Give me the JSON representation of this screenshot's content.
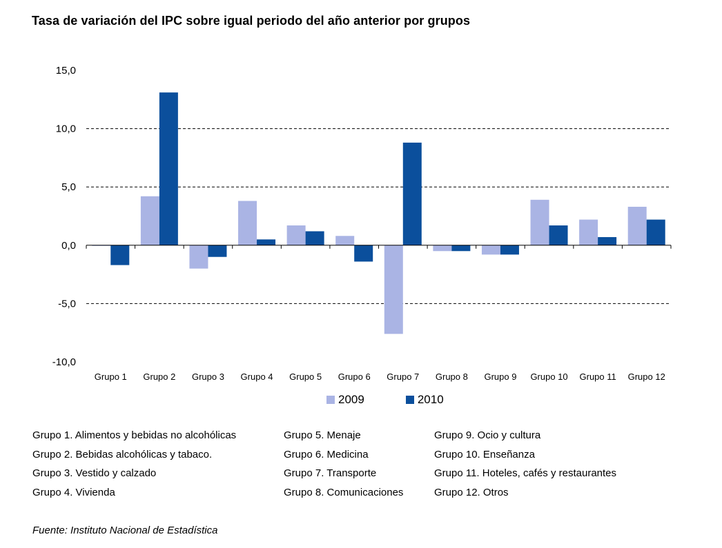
{
  "title": "Tasa de variación del IPC sobre igual periodo del año anterior por grupos",
  "chart_data": {
    "type": "bar",
    "categories": [
      "Grupo 1",
      "Grupo 2",
      "Grupo 3",
      "Grupo 4",
      "Grupo 5",
      "Grupo 6",
      "Grupo 7",
      "Grupo 8",
      "Grupo 9",
      "Grupo 10",
      "Grupo 11",
      "Grupo 12"
    ],
    "series": [
      {
        "name": "2009",
        "color": "#aab4e4",
        "values": [
          0.0,
          4.2,
          -2.0,
          3.8,
          1.7,
          0.8,
          -7.6,
          -0.5,
          -0.8,
          3.9,
          2.2,
          3.3
        ]
      },
      {
        "name": "2010",
        "color": "#0b4f9c",
        "values": [
          -1.7,
          13.1,
          -1.0,
          0.5,
          1.2,
          -1.4,
          8.8,
          -0.5,
          -0.8,
          1.7,
          0.7,
          2.2
        ]
      }
    ],
    "yticks": [
      "15,0",
      "10,0",
      "5,0",
      "0,0",
      "-5,0",
      "-10,0"
    ],
    "ytick_values": [
      15,
      10,
      5,
      0,
      -5,
      -10
    ],
    "ylim": [
      -10,
      15
    ],
    "grid": "dashed horizontal",
    "legend_position": "bottom"
  },
  "groups": [
    [
      "Grupo 1. Alimentos y bebidas no alcohólicas",
      "Grupo 2. Bebidas alcohólicas y  tabaco.",
      "Grupo 3. Vestido y calzado",
      "Grupo 4. Vivienda"
    ],
    [
      "Grupo 5. Menaje",
      "Grupo 6. Medicina",
      "Grupo 7. Transporte",
      "Grupo 8. Comunicaciones"
    ],
    [
      "Grupo 9. Ocio y cultura",
      "Grupo 10. Enseñanza",
      "Grupo 11. Hoteles, cafés y restaurantes",
      "Grupo 12. Otros"
    ]
  ],
  "source": "Fuente: Instituto Nacional de Estadística"
}
